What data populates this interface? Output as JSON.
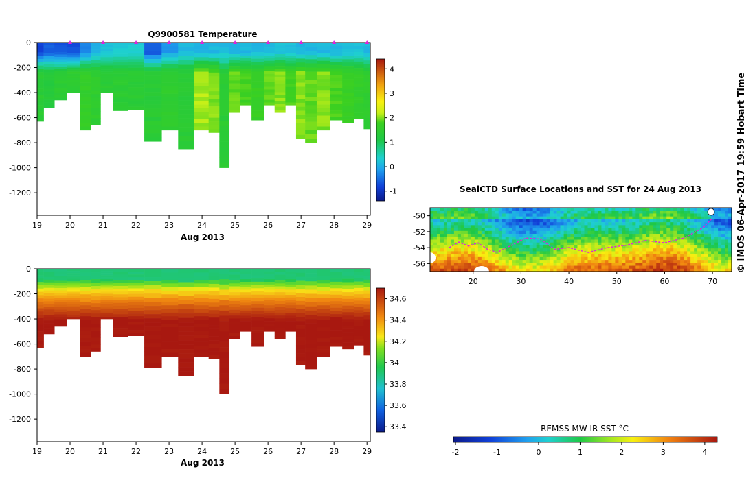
{
  "credit": "© IMOS 06-Apr-2017 19:59 Hobart Time",
  "chart_data": [
    {
      "id": "temperature",
      "type": "heatmap",
      "title": "Q9900581  Temperature",
      "xlabel": "Aug 2013",
      "x_ticks": [
        "19",
        "20",
        "21",
        "22",
        "23",
        "24",
        "25",
        "26",
        "27",
        "28",
        "29"
      ],
      "x_range": [
        19.0,
        29.1
      ],
      "y_ticks": [
        "0",
        "-200",
        "-400",
        "-600",
        "-800",
        "-1000",
        "-1200"
      ],
      "y_range": [
        0,
        -1380
      ],
      "colorbar": {
        "range": [
          -1.4,
          4.4
        ],
        "ticks": [
          "-1",
          "0",
          "1",
          "2",
          "3",
          "4"
        ]
      },
      "profile_times": [
        19.05,
        19.35,
        19.7,
        20.1,
        20.5,
        20.75,
        21.1,
        21.5,
        22.0,
        22.5,
        23.05,
        23.5,
        24.0,
        24.4,
        24.65,
        25.0,
        25.3,
        25.7,
        26.05,
        26.35,
        26.7,
        27.0,
        27.25,
        27.7,
        28.05,
        28.45,
        28.75,
        29.05
      ],
      "profile_max_depth": [
        -630,
        -520,
        -460,
        -400,
        -700,
        -660,
        -400,
        -545,
        -535,
        -790,
        -700,
        -855,
        -700,
        -720,
        -1000,
        -560,
        -500,
        -620,
        -500,
        -560,
        -500,
        -770,
        -800,
        -700,
        -620,
        -640,
        -610,
        -690
      ],
      "surface_temperature": [
        -0.8,
        -0.6,
        -0.7,
        -0.7,
        -0.3,
        0.0,
        0.2,
        0.3,
        0.3,
        -0.6,
        -0.2,
        0.1,
        0.0,
        0.1,
        0.1,
        0.1,
        0.1,
        0.1,
        0.1,
        0.2,
        0.2,
        0.1,
        0.1,
        0.1,
        0.1,
        0.2,
        0.2,
        0.1
      ],
      "deep_temperature": [
        1.4,
        1.3,
        1.4,
        1.5,
        1.6,
        1.5,
        1.4,
        1.4,
        1.4,
        1.4,
        1.5,
        1.4,
        2.1,
        2.0,
        1.4,
        1.9,
        1.8,
        1.7,
        1.9,
        2.0,
        1.8,
        2.0,
        1.9,
        2.0,
        1.8,
        1.7,
        1.6,
        1.5
      ],
      "marker_times": [
        20,
        21,
        22,
        23,
        24,
        25,
        26,
        27,
        28,
        29
      ]
    },
    {
      "id": "salinity",
      "type": "heatmap",
      "title": "",
      "xlabel": "Aug 2013",
      "x_ticks": [
        "19",
        "20",
        "21",
        "22",
        "23",
        "24",
        "25",
        "26",
        "27",
        "28",
        "29"
      ],
      "x_range": [
        19.0,
        29.1
      ],
      "y_ticks": [
        "0",
        "-200",
        "-400",
        "-600",
        "-800",
        "-1000",
        "-1200"
      ],
      "y_range": [
        0,
        -1380
      ],
      "colorbar": {
        "range": [
          33.35,
          34.7
        ],
        "ticks": [
          "33.4",
          "33.6",
          "33.8",
          "34",
          "34.2",
          "34.4",
          "34.6"
        ]
      },
      "surface_salinity": 33.9,
      "deep_salinity": 34.7
    },
    {
      "id": "sst-map",
      "type": "heatmap",
      "title": "SealCTD Surface Locations and SST for 24 Aug 2013",
      "x_ticks": [
        "20",
        "30",
        "40",
        "50",
        "60",
        "70"
      ],
      "x_range": [
        11,
        74
      ],
      "y_ticks": [
        "-50",
        "-52",
        "-54",
        "-56"
      ],
      "y_range": [
        -49,
        -57
      ],
      "track": [
        [
          15,
          -54.0
        ],
        [
          17,
          -53.3
        ],
        [
          19,
          -53.8
        ],
        [
          21,
          -53.4
        ],
        [
          23,
          -54.2
        ],
        [
          25,
          -54.6
        ],
        [
          27,
          -54.0
        ],
        [
          29,
          -53.4
        ],
        [
          31,
          -52.8
        ],
        [
          34,
          -52.9
        ],
        [
          37,
          -54.2
        ],
        [
          40,
          -54.0
        ],
        [
          44,
          -54.6
        ],
        [
          48,
          -54.0
        ],
        [
          52,
          -53.7
        ],
        [
          56,
          -53.1
        ],
        [
          60,
          -53.4
        ],
        [
          64,
          -52.8
        ],
        [
          68,
          -51.5
        ],
        [
          70,
          -50.3
        ]
      ],
      "colorbar": {
        "label": "REMSS MW-IR SST °C",
        "range": [
          -2.05,
          4.3
        ],
        "ticks": [
          "-2",
          "-1",
          "0",
          "1",
          "2",
          "3",
          "4"
        ]
      }
    }
  ]
}
